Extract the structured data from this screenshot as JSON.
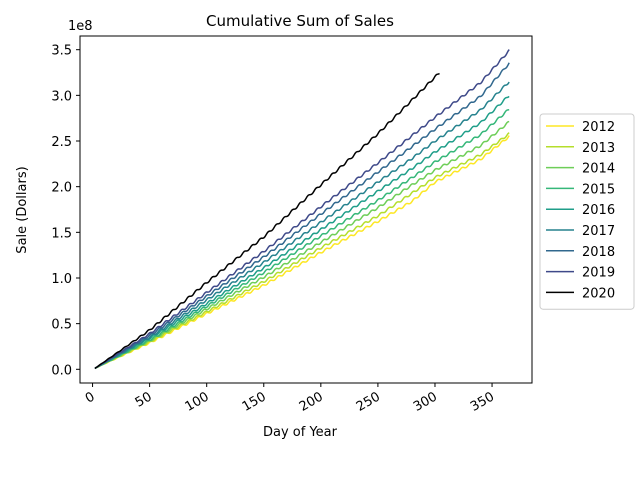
{
  "chart_data": {
    "type": "line",
    "title": "Cumulative Sum of Sales",
    "xlabel": "Day of Year",
    "ylabel": "Sale (Dollars)",
    "y_offset_label": "1e8",
    "xlim": [
      -11,
      385
    ],
    "ylim": [
      -0.15,
      3.65
    ],
    "xticks": [
      0,
      50,
      100,
      150,
      200,
      250,
      300,
      350
    ],
    "xtick_labels": [
      "0",
      "50",
      "100",
      "150",
      "200",
      "250",
      "300",
      "350"
    ],
    "yticks": [
      0.0,
      0.5,
      1.0,
      1.5,
      2.0,
      2.5,
      3.0,
      3.5
    ],
    "ytick_labels": [
      "0.0",
      "0.5",
      "1.0",
      "1.5",
      "2.0",
      "2.5",
      "3.0",
      "3.5"
    ],
    "grid": false,
    "legend_position": "right-outside",
    "series": [
      {
        "name": "2012",
        "color": "#fde725",
        "x": [
          2,
          50,
          100,
          150,
          200,
          250,
          280,
          300,
          340,
          365
        ],
        "y": [
          0.01,
          0.29,
          0.61,
          0.92,
          1.28,
          1.62,
          1.84,
          2.05,
          2.3,
          2.55
        ]
      },
      {
        "name": "2013",
        "color": "#b5de2b",
        "x": [
          2,
          50,
          100,
          150,
          200,
          250,
          280,
          300,
          340,
          365
        ],
        "y": [
          0.01,
          0.3,
          0.63,
          0.96,
          1.33,
          1.68,
          1.93,
          2.1,
          2.35,
          2.58
        ]
      },
      {
        "name": "2014",
        "color": "#6ece58",
        "x": [
          2,
          50,
          100,
          150,
          200,
          250,
          280,
          300,
          340,
          365
        ],
        "y": [
          0.01,
          0.31,
          0.66,
          1.01,
          1.39,
          1.77,
          2.02,
          2.18,
          2.45,
          2.71
        ]
      },
      {
        "name": "2015",
        "color": "#35b779",
        "x": [
          2,
          50,
          100,
          150,
          200,
          250,
          280,
          300,
          340,
          365
        ],
        "y": [
          0.01,
          0.32,
          0.69,
          1.06,
          1.46,
          1.85,
          2.1,
          2.27,
          2.57,
          2.85
        ]
      },
      {
        "name": "2016",
        "color": "#1f9e89",
        "x": [
          2,
          50,
          100,
          150,
          200,
          250,
          280,
          300,
          340,
          365
        ],
        "y": [
          0.01,
          0.34,
          0.72,
          1.11,
          1.53,
          1.95,
          2.2,
          2.38,
          2.7,
          3.0
        ]
      },
      {
        "name": "2017",
        "color": "#26828e",
        "x": [
          2,
          50,
          100,
          150,
          200,
          250,
          280,
          300,
          340,
          365
        ],
        "y": [
          0.01,
          0.35,
          0.76,
          1.17,
          1.61,
          2.05,
          2.31,
          2.5,
          2.84,
          3.15
        ]
      },
      {
        "name": "2018",
        "color": "#31688e",
        "x": [
          2,
          50,
          100,
          150,
          200,
          250,
          280,
          300,
          340,
          365
        ],
        "y": [
          0.01,
          0.37,
          0.8,
          1.23,
          1.7,
          2.16,
          2.44,
          2.63,
          2.99,
          3.35
        ]
      },
      {
        "name": "2019",
        "color": "#3e4989",
        "x": [
          2,
          50,
          100,
          150,
          200,
          250,
          280,
          300,
          340,
          365
        ],
        "y": [
          0.01,
          0.39,
          0.84,
          1.29,
          1.78,
          2.26,
          2.56,
          2.76,
          3.14,
          3.49
        ]
      },
      {
        "name": "2020",
        "color": "#000000",
        "x": [
          2,
          50,
          100,
          150,
          200,
          250,
          280,
          304
        ],
        "y": [
          0.01,
          0.43,
          0.95,
          1.45,
          2.02,
          2.58,
          2.95,
          3.25
        ]
      }
    ]
  }
}
